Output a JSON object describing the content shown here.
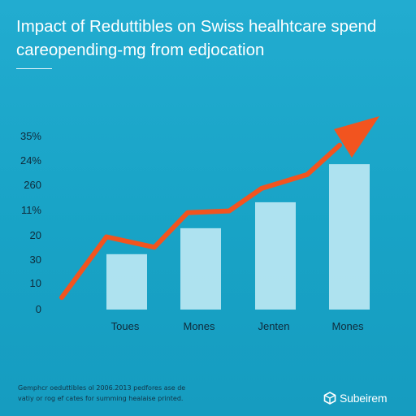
{
  "chart_data": {
    "type": "bar",
    "title": "Impact of Reduttibles on Swiss healhtcare spend careopending-mg from edjocation",
    "categories": [
      "Toues",
      "Mones",
      "Jenten",
      "Mones"
    ],
    "values": [
      32,
      47,
      62,
      84
    ],
    "y_tick_labels": [
      "0",
      "10",
      "30",
      "20",
      "11%",
      "260",
      "24%",
      "35%"
    ],
    "trend_line": {
      "values": [
        7,
        42,
        36,
        56,
        57,
        70,
        78,
        95
      ]
    },
    "colors": {
      "background": "#1ba6c7",
      "bar": "#bfe9f4",
      "trend": "#f2541f",
      "axis": "#0f2a3a"
    },
    "grid": false,
    "legend": "none"
  },
  "footnote": {
    "line1": "Gemphcr oeduttibles ol 2006.2013 pedfores ase de",
    "line2": "vatiy or rog ef cates for summing healaise printed."
  },
  "brand": {
    "icon": "cube-icon",
    "name": "Subeirem"
  }
}
